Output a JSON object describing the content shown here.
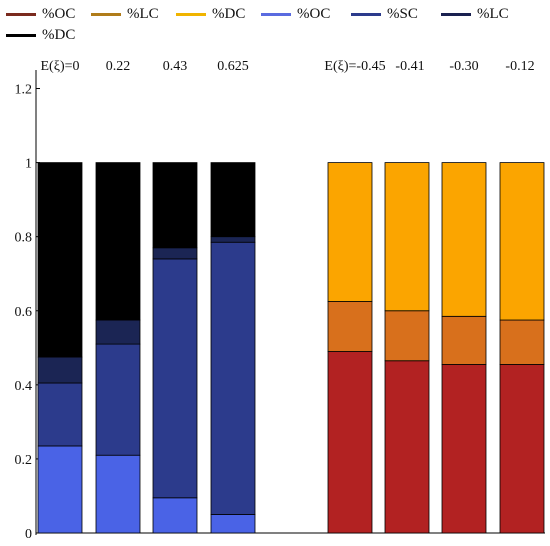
{
  "legend": [
    {
      "label": "%OC",
      "color": "#7a2a1e"
    },
    {
      "label": "%LC",
      "color": "#b07c1a"
    },
    {
      "label": "%DC",
      "color": "#f0b400"
    },
    {
      "label": "%OC",
      "color": "#5a6be0"
    },
    {
      "label": "%SC",
      "color": "#2c3b8c"
    },
    {
      "label": "%LC",
      "color": "#1a2150"
    },
    {
      "label": "%DC",
      "color": "#000000"
    }
  ],
  "chart_data": {
    "type": "bar",
    "stacked": true,
    "ylim": [
      0,
      1.25
    ],
    "yticks": [
      "0",
      "0.2",
      "0.4",
      "0.6",
      "0.8",
      "1",
      "1.2"
    ],
    "top_labels": [
      "E(ξ)=0",
      "0.22",
      "0.43",
      "0.625",
      "E(ξ)=-0.45",
      "-0.41",
      "-0.30",
      "-0.12"
    ],
    "groups": [
      {
        "name": "blue",
        "bars": [
          {
            "label": "E(ξ)=0",
            "segments": [
              0.235,
              0.17,
              0.07,
              0.525
            ]
          },
          {
            "label": "0.22",
            "segments": [
              0.21,
              0.3,
              0.065,
              0.425
            ]
          },
          {
            "label": "0.43",
            "segments": [
              0.095,
              0.645,
              0.03,
              0.23
            ]
          },
          {
            "label": "0.625",
            "segments": [
              0.05,
              0.735,
              0.015,
              0.2
            ]
          }
        ],
        "segment_names": [
          "%OC",
          "%SC",
          "%LC",
          "%DC"
        ],
        "segment_colors": [
          "#4a63e6",
          "#2c3b8c",
          "#1b2554",
          "#000000"
        ]
      },
      {
        "name": "orange",
        "bars": [
          {
            "label": "E(ξ)=-0.45",
            "segments": [
              0.49,
              0.135,
              0.375
            ]
          },
          {
            "label": "-0.41",
            "segments": [
              0.465,
              0.135,
              0.4
            ]
          },
          {
            "label": "-0.30",
            "segments": [
              0.455,
              0.13,
              0.415
            ]
          },
          {
            "label": "-0.12",
            "segments": [
              0.455,
              0.12,
              0.425
            ]
          }
        ],
        "segment_names": [
          "%OC",
          "%LC",
          "%DC"
        ],
        "segment_colors": [
          "#b22222",
          "#d8701c",
          "#fba500"
        ]
      }
    ]
  }
}
